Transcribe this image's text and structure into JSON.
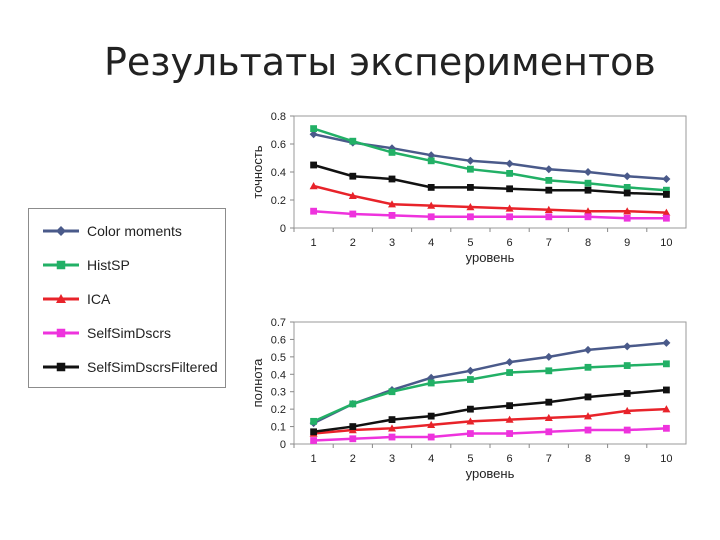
{
  "page": {
    "title": "Результаты экспериментов"
  },
  "legend": {
    "items": [
      {
        "label": "Color moments",
        "color": "#4a5a8a",
        "marker": "diamond"
      },
      {
        "label": "HistSP",
        "color": "#22b066",
        "marker": "square"
      },
      {
        "label": "ICA",
        "color": "#e8232a",
        "marker": "triangle"
      },
      {
        "label": "SelfSimDscrs",
        "color": "#ee33dd",
        "marker": "square"
      },
      {
        "label": "SelfSimDscrsFiltered",
        "color": "#111111",
        "marker": "square"
      }
    ]
  },
  "chart_data": [
    {
      "type": "line",
      "xlabel": "уровень",
      "ylabel": "точность",
      "x": [
        1,
        2,
        3,
        4,
        5,
        6,
        7,
        8,
        9,
        10
      ],
      "ylim": [
        0,
        0.8
      ],
      "yticks": [
        "0",
        "0.2",
        "0.4",
        "0.6",
        "0.8"
      ],
      "ytick_values": [
        0,
        0.2,
        0.4,
        0.6,
        0.8
      ],
      "grid": false,
      "series": [
        {
          "name": "Color moments",
          "values": [
            0.67,
            0.61,
            0.57,
            0.52,
            0.48,
            0.46,
            0.42,
            0.4,
            0.37,
            0.35
          ]
        },
        {
          "name": "HistSP",
          "values": [
            0.71,
            0.62,
            0.54,
            0.48,
            0.42,
            0.39,
            0.34,
            0.32,
            0.29,
            0.27
          ]
        },
        {
          "name": "ICA",
          "values": [
            0.3,
            0.23,
            0.17,
            0.16,
            0.15,
            0.14,
            0.13,
            0.12,
            0.12,
            0.11
          ]
        },
        {
          "name": "SelfSimDscrs",
          "values": [
            0.12,
            0.1,
            0.09,
            0.08,
            0.08,
            0.08,
            0.08,
            0.08,
            0.07,
            0.07
          ]
        },
        {
          "name": "SelfSimDscrsFiltered",
          "values": [
            0.45,
            0.37,
            0.35,
            0.29,
            0.29,
            0.28,
            0.27,
            0.27,
            0.25,
            0.24
          ]
        }
      ]
    },
    {
      "type": "line",
      "xlabel": "уровень",
      "ylabel": "полнота",
      "x": [
        1,
        2,
        3,
        4,
        5,
        6,
        7,
        8,
        9,
        10
      ],
      "ylim": [
        0,
        0.7
      ],
      "yticks": [
        "0",
        "0.1",
        "0.2",
        "0.3",
        "0.4",
        "0.5",
        "0.6",
        "0.7"
      ],
      "ytick_values": [
        0,
        0.1,
        0.2,
        0.3,
        0.4,
        0.5,
        0.6,
        0.7
      ],
      "grid": false,
      "series": [
        {
          "name": "Color moments",
          "values": [
            0.12,
            0.23,
            0.31,
            0.38,
            0.42,
            0.47,
            0.5,
            0.54,
            0.56,
            0.58
          ]
        },
        {
          "name": "HistSP",
          "values": [
            0.13,
            0.23,
            0.3,
            0.35,
            0.37,
            0.41,
            0.42,
            0.44,
            0.45,
            0.46
          ]
        },
        {
          "name": "ICA",
          "values": [
            0.06,
            0.08,
            0.09,
            0.11,
            0.13,
            0.14,
            0.15,
            0.16,
            0.19,
            0.2
          ]
        },
        {
          "name": "SelfSimDscrs",
          "values": [
            0.02,
            0.03,
            0.04,
            0.04,
            0.06,
            0.06,
            0.07,
            0.08,
            0.08,
            0.09
          ]
        },
        {
          "name": "SelfSimDscrsFiltered",
          "values": [
            0.07,
            0.1,
            0.14,
            0.16,
            0.2,
            0.22,
            0.24,
            0.27,
            0.29,
            0.31
          ]
        }
      ]
    }
  ]
}
